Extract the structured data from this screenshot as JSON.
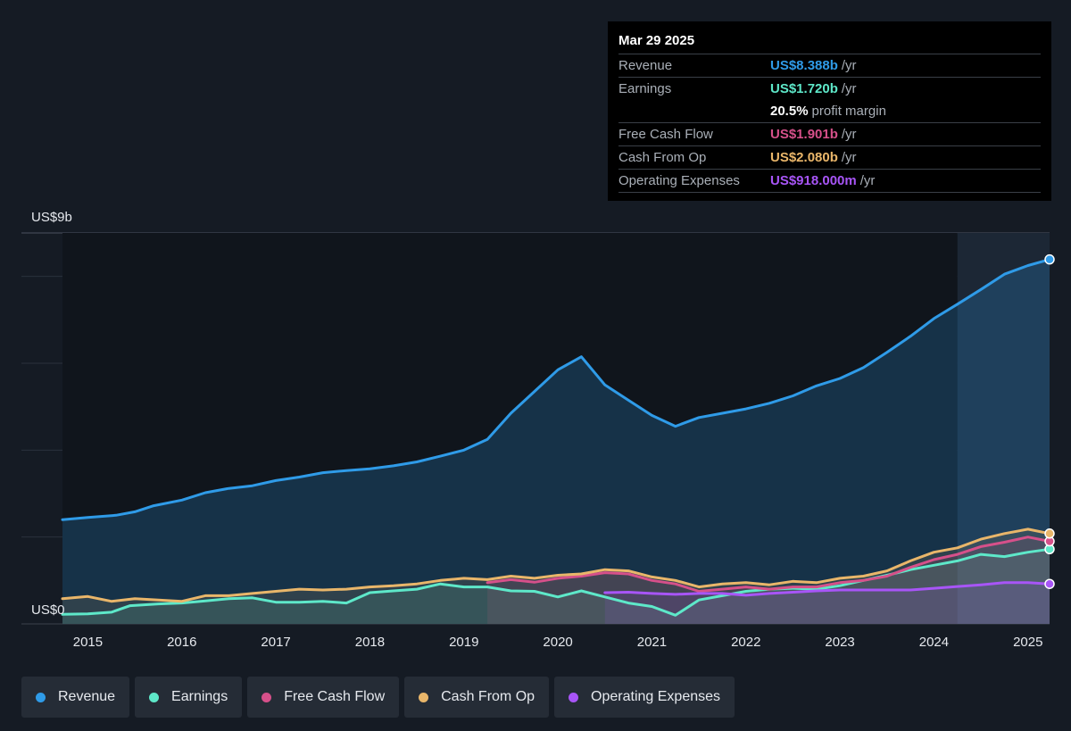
{
  "tooltip": {
    "date": "Mar 29 2025",
    "rows": [
      {
        "label": "Revenue",
        "value": "US$8.388b",
        "unit": "/yr",
        "color": "#2f9be8"
      },
      {
        "label": "Earnings",
        "value": "US$1.720b",
        "unit": "/yr",
        "color": "#5ee8c9"
      },
      {
        "label": "",
        "value": "20.5%",
        "unit": "profit margin",
        "color": "#ffffff"
      },
      {
        "label": "Free Cash Flow",
        "value": "US$1.901b",
        "unit": "/yr",
        "color": "#d6508a"
      },
      {
        "label": "Cash From Op",
        "value": "US$2.080b",
        "unit": "/yr",
        "color": "#e9b66a"
      },
      {
        "label": "Operating Expenses",
        "value": "US$918.000m",
        "unit": "/yr",
        "color": "#a855f7"
      }
    ]
  },
  "chart_data": {
    "type": "line",
    "y_top_label": "US$9b",
    "y_bottom_label": "US$0",
    "ylim": [
      0,
      9
    ],
    "xlim": [
      2014.5,
      2025.25
    ],
    "x_ticks": [
      "2015",
      "2016",
      "2017",
      "2018",
      "2019",
      "2020",
      "2021",
      "2022",
      "2023",
      "2024",
      "2025"
    ],
    "gridlines_b": [
      2,
      4,
      6,
      8,
      9
    ],
    "highlight_start": 2024.25,
    "series": [
      {
        "name": "Revenue",
        "color": "#2f9be8",
        "fill": true,
        "x_start": 2014.73,
        "points": [
          [
            2014.73,
            2.4
          ],
          [
            2015.0,
            2.45
          ],
          [
            2015.3,
            2.5
          ],
          [
            2015.5,
            2.58
          ],
          [
            2015.7,
            2.72
          ],
          [
            2016.0,
            2.85
          ],
          [
            2016.25,
            3.02
          ],
          [
            2016.5,
            3.12
          ],
          [
            2016.75,
            3.18
          ],
          [
            2017.0,
            3.3
          ],
          [
            2017.25,
            3.38
          ],
          [
            2017.5,
            3.48
          ],
          [
            2017.75,
            3.53
          ],
          [
            2018.0,
            3.57
          ],
          [
            2018.25,
            3.64
          ],
          [
            2018.5,
            3.73
          ],
          [
            2018.75,
            3.86
          ],
          [
            2019.0,
            4.0
          ],
          [
            2019.25,
            4.25
          ],
          [
            2019.5,
            4.85
          ],
          [
            2019.75,
            5.35
          ],
          [
            2020.0,
            5.85
          ],
          [
            2020.25,
            6.15
          ],
          [
            2020.5,
            5.5
          ],
          [
            2020.75,
            5.15
          ],
          [
            2021.0,
            4.8
          ],
          [
            2021.25,
            4.55
          ],
          [
            2021.5,
            4.75
          ],
          [
            2021.75,
            4.85
          ],
          [
            2022.0,
            4.95
          ],
          [
            2022.25,
            5.08
          ],
          [
            2022.5,
            5.25
          ],
          [
            2022.75,
            5.48
          ],
          [
            2023.0,
            5.65
          ],
          [
            2023.25,
            5.9
          ],
          [
            2023.5,
            6.25
          ],
          [
            2023.75,
            6.62
          ],
          [
            2024.0,
            7.03
          ],
          [
            2024.25,
            7.36
          ],
          [
            2024.5,
            7.7
          ],
          [
            2024.75,
            8.05
          ],
          [
            2025.0,
            8.25
          ],
          [
            2025.23,
            8.39
          ]
        ]
      },
      {
        "name": "Earnings",
        "color": "#5ee8c9",
        "fill": true,
        "x_start": 2014.73,
        "points": [
          [
            2014.73,
            0.22
          ],
          [
            2015.0,
            0.23
          ],
          [
            2015.25,
            0.27
          ],
          [
            2015.45,
            0.42
          ],
          [
            2015.75,
            0.46
          ],
          [
            2016.0,
            0.48
          ],
          [
            2016.25,
            0.53
          ],
          [
            2016.5,
            0.58
          ],
          [
            2016.75,
            0.6
          ],
          [
            2017.0,
            0.5
          ],
          [
            2017.25,
            0.5
          ],
          [
            2017.5,
            0.52
          ],
          [
            2017.75,
            0.48
          ],
          [
            2018.0,
            0.72
          ],
          [
            2018.25,
            0.76
          ],
          [
            2018.5,
            0.8
          ],
          [
            2018.75,
            0.92
          ],
          [
            2019.0,
            0.85
          ],
          [
            2019.25,
            0.85
          ],
          [
            2019.5,
            0.76
          ],
          [
            2019.75,
            0.75
          ],
          [
            2020.0,
            0.62
          ],
          [
            2020.25,
            0.76
          ],
          [
            2020.5,
            0.62
          ],
          [
            2020.75,
            0.48
          ],
          [
            2021.0,
            0.4
          ],
          [
            2021.25,
            0.2
          ],
          [
            2021.5,
            0.55
          ],
          [
            2021.75,
            0.65
          ],
          [
            2022.0,
            0.75
          ],
          [
            2022.25,
            0.8
          ],
          [
            2022.5,
            0.82
          ],
          [
            2022.75,
            0.8
          ],
          [
            2023.0,
            0.88
          ],
          [
            2023.25,
            1.0
          ],
          [
            2023.5,
            1.12
          ],
          [
            2023.75,
            1.25
          ],
          [
            2024.0,
            1.35
          ],
          [
            2024.25,
            1.45
          ],
          [
            2024.5,
            1.6
          ],
          [
            2024.75,
            1.55
          ],
          [
            2025.0,
            1.65
          ],
          [
            2025.23,
            1.72
          ]
        ]
      },
      {
        "name": "Free Cash Flow",
        "color": "#d6508a",
        "fill": true,
        "x_start": 2019.25,
        "points": [
          [
            2019.25,
            0.95
          ],
          [
            2019.5,
            1.02
          ],
          [
            2019.75,
            0.96
          ],
          [
            2020.0,
            1.05
          ],
          [
            2020.25,
            1.1
          ],
          [
            2020.5,
            1.18
          ],
          [
            2020.75,
            1.15
          ],
          [
            2021.0,
            1.0
          ],
          [
            2021.25,
            0.92
          ],
          [
            2021.5,
            0.75
          ],
          [
            2021.75,
            0.8
          ],
          [
            2022.0,
            0.85
          ],
          [
            2022.25,
            0.8
          ],
          [
            2022.5,
            0.85
          ],
          [
            2022.75,
            0.85
          ],
          [
            2023.0,
            0.95
          ],
          [
            2023.25,
            1.0
          ],
          [
            2023.5,
            1.1
          ],
          [
            2023.75,
            1.3
          ],
          [
            2024.0,
            1.48
          ],
          [
            2024.25,
            1.6
          ],
          [
            2024.5,
            1.78
          ],
          [
            2024.75,
            1.88
          ],
          [
            2025.0,
            2.0
          ],
          [
            2025.23,
            1.9
          ]
        ]
      },
      {
        "name": "Cash From Op",
        "color": "#e9b66a",
        "fill": true,
        "x_start": 2014.73,
        "points": [
          [
            2014.73,
            0.58
          ],
          [
            2015.0,
            0.63
          ],
          [
            2015.25,
            0.52
          ],
          [
            2015.5,
            0.58
          ],
          [
            2015.75,
            0.55
          ],
          [
            2016.0,
            0.52
          ],
          [
            2016.25,
            0.65
          ],
          [
            2016.5,
            0.65
          ],
          [
            2016.75,
            0.7
          ],
          [
            2017.0,
            0.75
          ],
          [
            2017.25,
            0.8
          ],
          [
            2017.5,
            0.78
          ],
          [
            2017.75,
            0.8
          ],
          [
            2018.0,
            0.85
          ],
          [
            2018.25,
            0.88
          ],
          [
            2018.5,
            0.92
          ],
          [
            2018.75,
            1.0
          ],
          [
            2019.0,
            1.05
          ],
          [
            2019.25,
            1.02
          ],
          [
            2019.5,
            1.1
          ],
          [
            2019.75,
            1.05
          ],
          [
            2020.0,
            1.12
          ],
          [
            2020.25,
            1.15
          ],
          [
            2020.5,
            1.25
          ],
          [
            2020.75,
            1.22
          ],
          [
            2021.0,
            1.08
          ],
          [
            2021.25,
            1.0
          ],
          [
            2021.5,
            0.85
          ],
          [
            2021.75,
            0.92
          ],
          [
            2022.0,
            0.95
          ],
          [
            2022.25,
            0.9
          ],
          [
            2022.5,
            0.98
          ],
          [
            2022.75,
            0.95
          ],
          [
            2023.0,
            1.05
          ],
          [
            2023.25,
            1.1
          ],
          [
            2023.5,
            1.22
          ],
          [
            2023.75,
            1.45
          ],
          [
            2024.0,
            1.65
          ],
          [
            2024.25,
            1.75
          ],
          [
            2024.5,
            1.95
          ],
          [
            2024.75,
            2.08
          ],
          [
            2025.0,
            2.18
          ],
          [
            2025.23,
            2.08
          ]
        ]
      },
      {
        "name": "Operating Expenses",
        "color": "#a855f7",
        "fill": true,
        "x_start": 2020.5,
        "points": [
          [
            2020.5,
            0.72
          ],
          [
            2020.75,
            0.73
          ],
          [
            2021.0,
            0.7
          ],
          [
            2021.25,
            0.68
          ],
          [
            2021.5,
            0.7
          ],
          [
            2021.75,
            0.7
          ],
          [
            2022.0,
            0.66
          ],
          [
            2022.25,
            0.7
          ],
          [
            2022.5,
            0.73
          ],
          [
            2022.75,
            0.76
          ],
          [
            2023.0,
            0.78
          ],
          [
            2023.25,
            0.78
          ],
          [
            2023.5,
            0.78
          ],
          [
            2023.75,
            0.78
          ],
          [
            2024.0,
            0.82
          ],
          [
            2024.25,
            0.86
          ],
          [
            2024.5,
            0.9
          ],
          [
            2024.75,
            0.95
          ],
          [
            2025.0,
            0.95
          ],
          [
            2025.23,
            0.92
          ]
        ]
      }
    ]
  },
  "legend": [
    {
      "label": "Revenue",
      "color": "#2f9be8"
    },
    {
      "label": "Earnings",
      "color": "#5ee8c9"
    },
    {
      "label": "Free Cash Flow",
      "color": "#d6508a"
    },
    {
      "label": "Cash From Op",
      "color": "#e9b66a"
    },
    {
      "label": "Operating Expenses",
      "color": "#a855f7"
    }
  ]
}
